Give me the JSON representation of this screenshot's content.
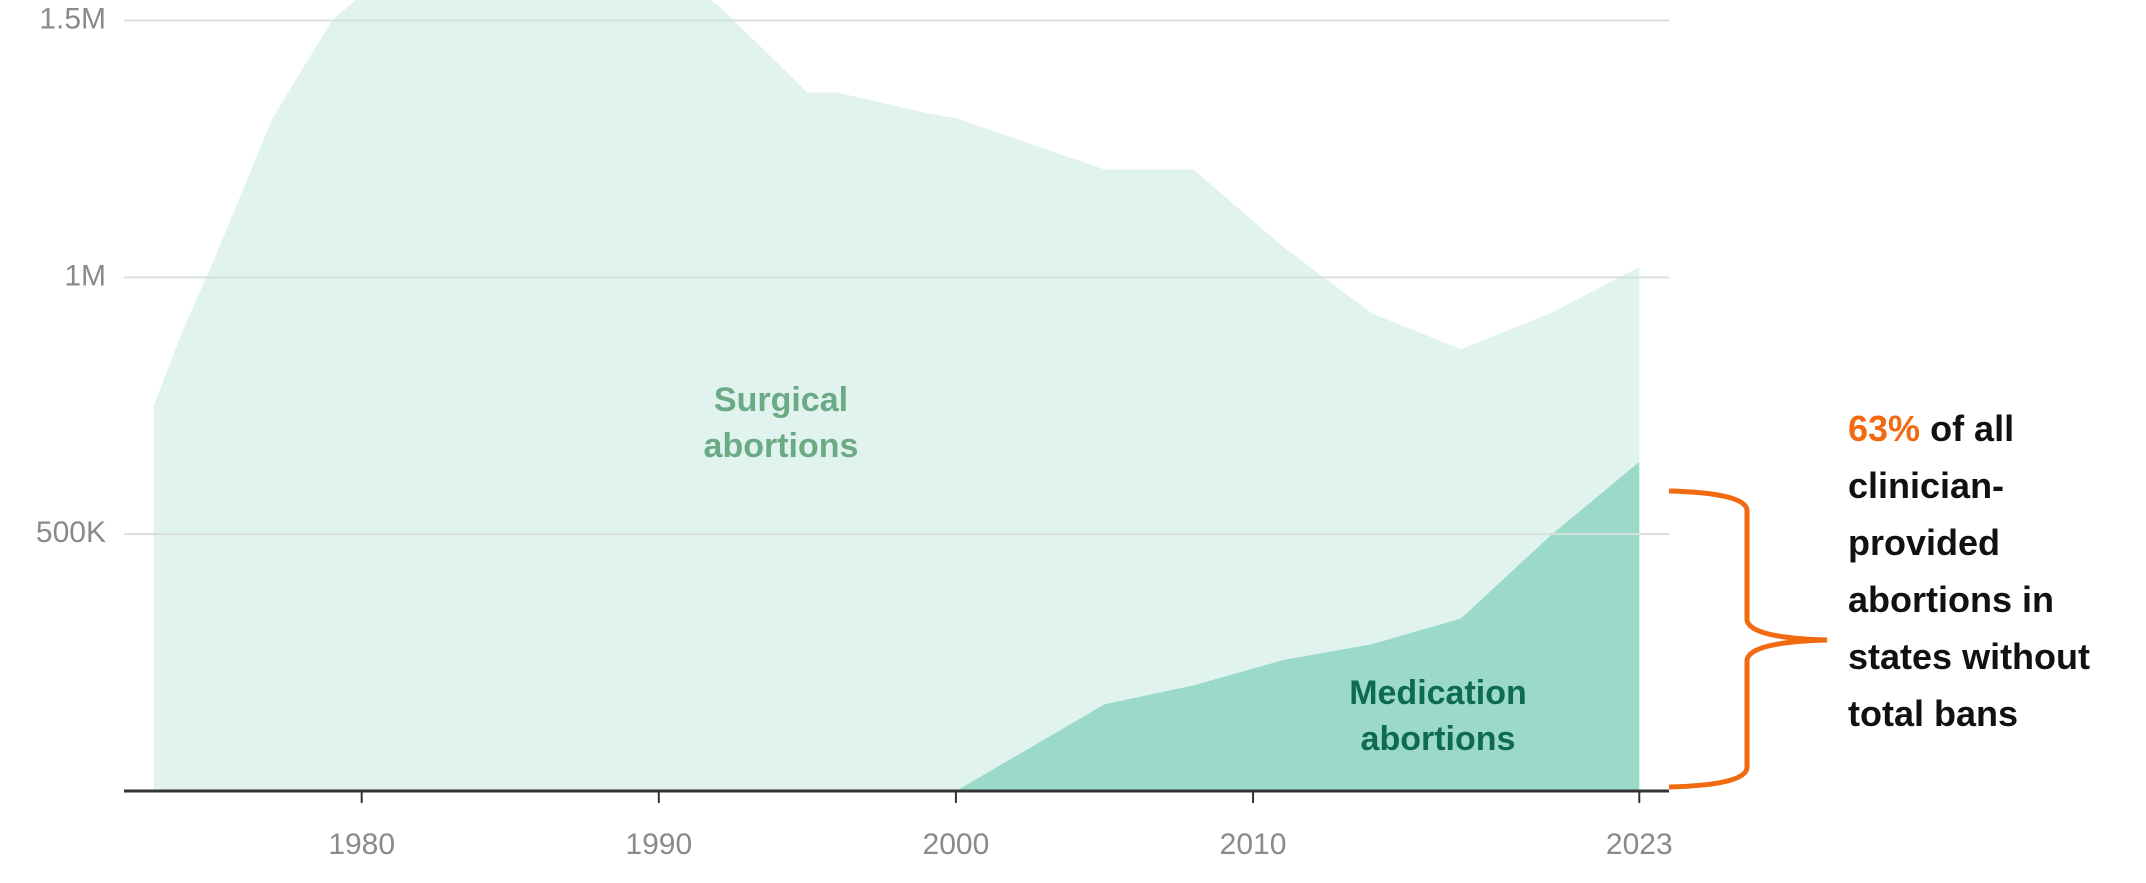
{
  "chart_data": {
    "type": "stacked-area",
    "x": [
      1973,
      1974,
      1975,
      1977,
      1979,
      1980,
      1985,
      1990,
      1992,
      1995,
      1996,
      1999,
      2000,
      2005,
      2008,
      2011,
      2014,
      2017,
      2020,
      2023
    ],
    "series": [
      {
        "name": "Medication abortions",
        "color": "#9bd9c8",
        "label_color": "#0e6b4e",
        "values": [
          0,
          0,
          0,
          0,
          0,
          0,
          0,
          0,
          0,
          0,
          0,
          0,
          0,
          169000,
          206000,
          255000,
          286000,
          336000,
          497000,
          641000
        ]
      },
      {
        "name": "Surgical abortions",
        "color": "#e0f3ee",
        "label_color": "#6aaa85",
        "values": [
          750000,
          900000,
          1030000,
          1310000,
          1500000,
          1550000,
          1600000,
          1600000,
          1530000,
          1360000,
          1360000,
          1320000,
          1310000,
          1041000,
          1004000,
          805000,
          644000,
          524000,
          433000,
          379000
        ]
      }
    ],
    "xlim": [
      1972,
      2024
    ],
    "xticks": [
      1980,
      1990,
      2000,
      2010,
      2023
    ],
    "ylim": [
      0,
      1540000
    ],
    "yticks": [
      {
        "value": 500000,
        "label": "500K"
      },
      {
        "value": 1000000,
        "label": "1M"
      },
      {
        "value": 1500000,
        "label": "1.5M"
      }
    ],
    "grid": true,
    "annotation": {
      "highlight": "63%",
      "highlight_color": "#f26a10",
      "text": "of all clinician-provided abortions in states without total bans"
    }
  }
}
